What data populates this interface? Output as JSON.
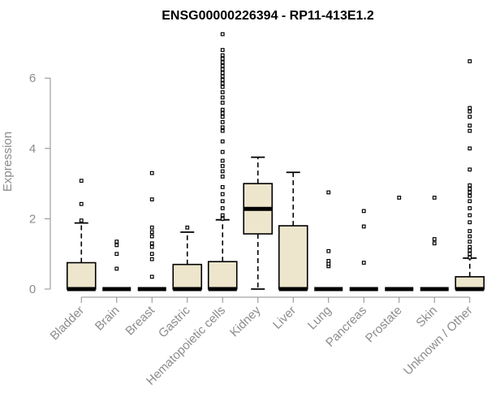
{
  "chart_data": {
    "type": "boxplot",
    "title": "ENSG00000226394 - RP11-413E1.2",
    "xlabel": "",
    "ylabel": "Expression",
    "ylim": [
      0,
      7.3
    ],
    "yticks": [
      0,
      2,
      4,
      6
    ],
    "grid": false,
    "colors": {
      "box_fill": "#ede6cd",
      "stroke": "#000000",
      "axis": "#8c8c8c"
    },
    "categories": [
      "Bladder",
      "Brain",
      "Breast",
      "Gastric",
      "Hematopoietic cells",
      "Kidney",
      "Liver",
      "Lung",
      "Pancreas",
      "Prostate",
      "Skin",
      "Unknown / Other"
    ],
    "boxes": [
      {
        "category": "Bladder",
        "q1": 0,
        "median": 0,
        "q3": 0.75,
        "whisker_low": 0,
        "whisker_high": 1.88,
        "outliers": [
          1.95,
          2.42,
          3.08
        ]
      },
      {
        "category": "Brain",
        "q1": 0,
        "median": 0,
        "q3": 0,
        "whisker_low": 0,
        "whisker_high": 0,
        "outliers": [
          0.58,
          1.0,
          1.25,
          1.35
        ]
      },
      {
        "category": "Breast",
        "q1": 0,
        "median": 0,
        "q3": 0,
        "whisker_low": 0,
        "whisker_high": 0,
        "outliers": [
          0.35,
          0.85,
          1.0,
          1.2,
          1.3,
          1.5,
          1.62,
          1.75,
          2.55,
          3.3
        ]
      },
      {
        "category": "Gastric",
        "q1": 0,
        "median": 0,
        "q3": 0.7,
        "whisker_low": 0,
        "whisker_high": 1.62,
        "outliers": [
          1.75
        ]
      },
      {
        "category": "Hematopoietic cells",
        "q1": 0,
        "median": 0,
        "q3": 0.78,
        "whisker_low": 0,
        "whisker_high": 1.97,
        "outliers": [
          2.0,
          2.1,
          2.3,
          2.5,
          2.7,
          2.9,
          3.2,
          3.35,
          3.5,
          3.65,
          3.9,
          4.2,
          4.5,
          4.6,
          4.75,
          4.9,
          5.0,
          5.1,
          5.3,
          5.45,
          5.6,
          5.75,
          5.85,
          5.95,
          6.05,
          6.15,
          6.25,
          6.35,
          6.45,
          6.55,
          6.65,
          6.8,
          7.25
        ]
      },
      {
        "category": "Kidney",
        "q1": 1.57,
        "median": 2.28,
        "q3": 3.0,
        "whisker_low": 0,
        "whisker_high": 3.75,
        "outliers": []
      },
      {
        "category": "Liver",
        "q1": 0,
        "median": 0,
        "q3": 1.8,
        "whisker_low": 0,
        "whisker_high": 3.32,
        "outliers": []
      },
      {
        "category": "Lung",
        "q1": 0,
        "median": 0,
        "q3": 0,
        "whisker_low": 0,
        "whisker_high": 0,
        "outliers": [
          0.65,
          0.72,
          0.8,
          1.08,
          2.75
        ]
      },
      {
        "category": "Pancreas",
        "q1": 0,
        "median": 0,
        "q3": 0,
        "whisker_low": 0,
        "whisker_high": 0,
        "outliers": [
          0.75,
          1.78,
          2.22
        ]
      },
      {
        "category": "Prostate",
        "q1": 0,
        "median": 0,
        "q3": 0,
        "whisker_low": 0,
        "whisker_high": 0,
        "outliers": [
          2.6
        ]
      },
      {
        "category": "Skin",
        "q1": 0,
        "median": 0,
        "q3": 0,
        "whisker_low": 0,
        "whisker_high": 0,
        "outliers": [
          1.3,
          1.42,
          2.6
        ]
      },
      {
        "category": "Unknown / Other",
        "q1": 0,
        "median": 0,
        "q3": 0.35,
        "whisker_low": 0,
        "whisker_high": 0.88,
        "outliers": [
          0.9,
          1.0,
          1.1,
          1.2,
          1.35,
          1.5,
          1.65,
          1.9,
          2.1,
          2.3,
          2.5,
          2.65,
          2.75,
          2.85,
          2.95,
          3.4,
          4.0,
          4.5,
          4.65,
          4.9,
          5.05,
          5.15,
          6.48
        ]
      }
    ]
  }
}
